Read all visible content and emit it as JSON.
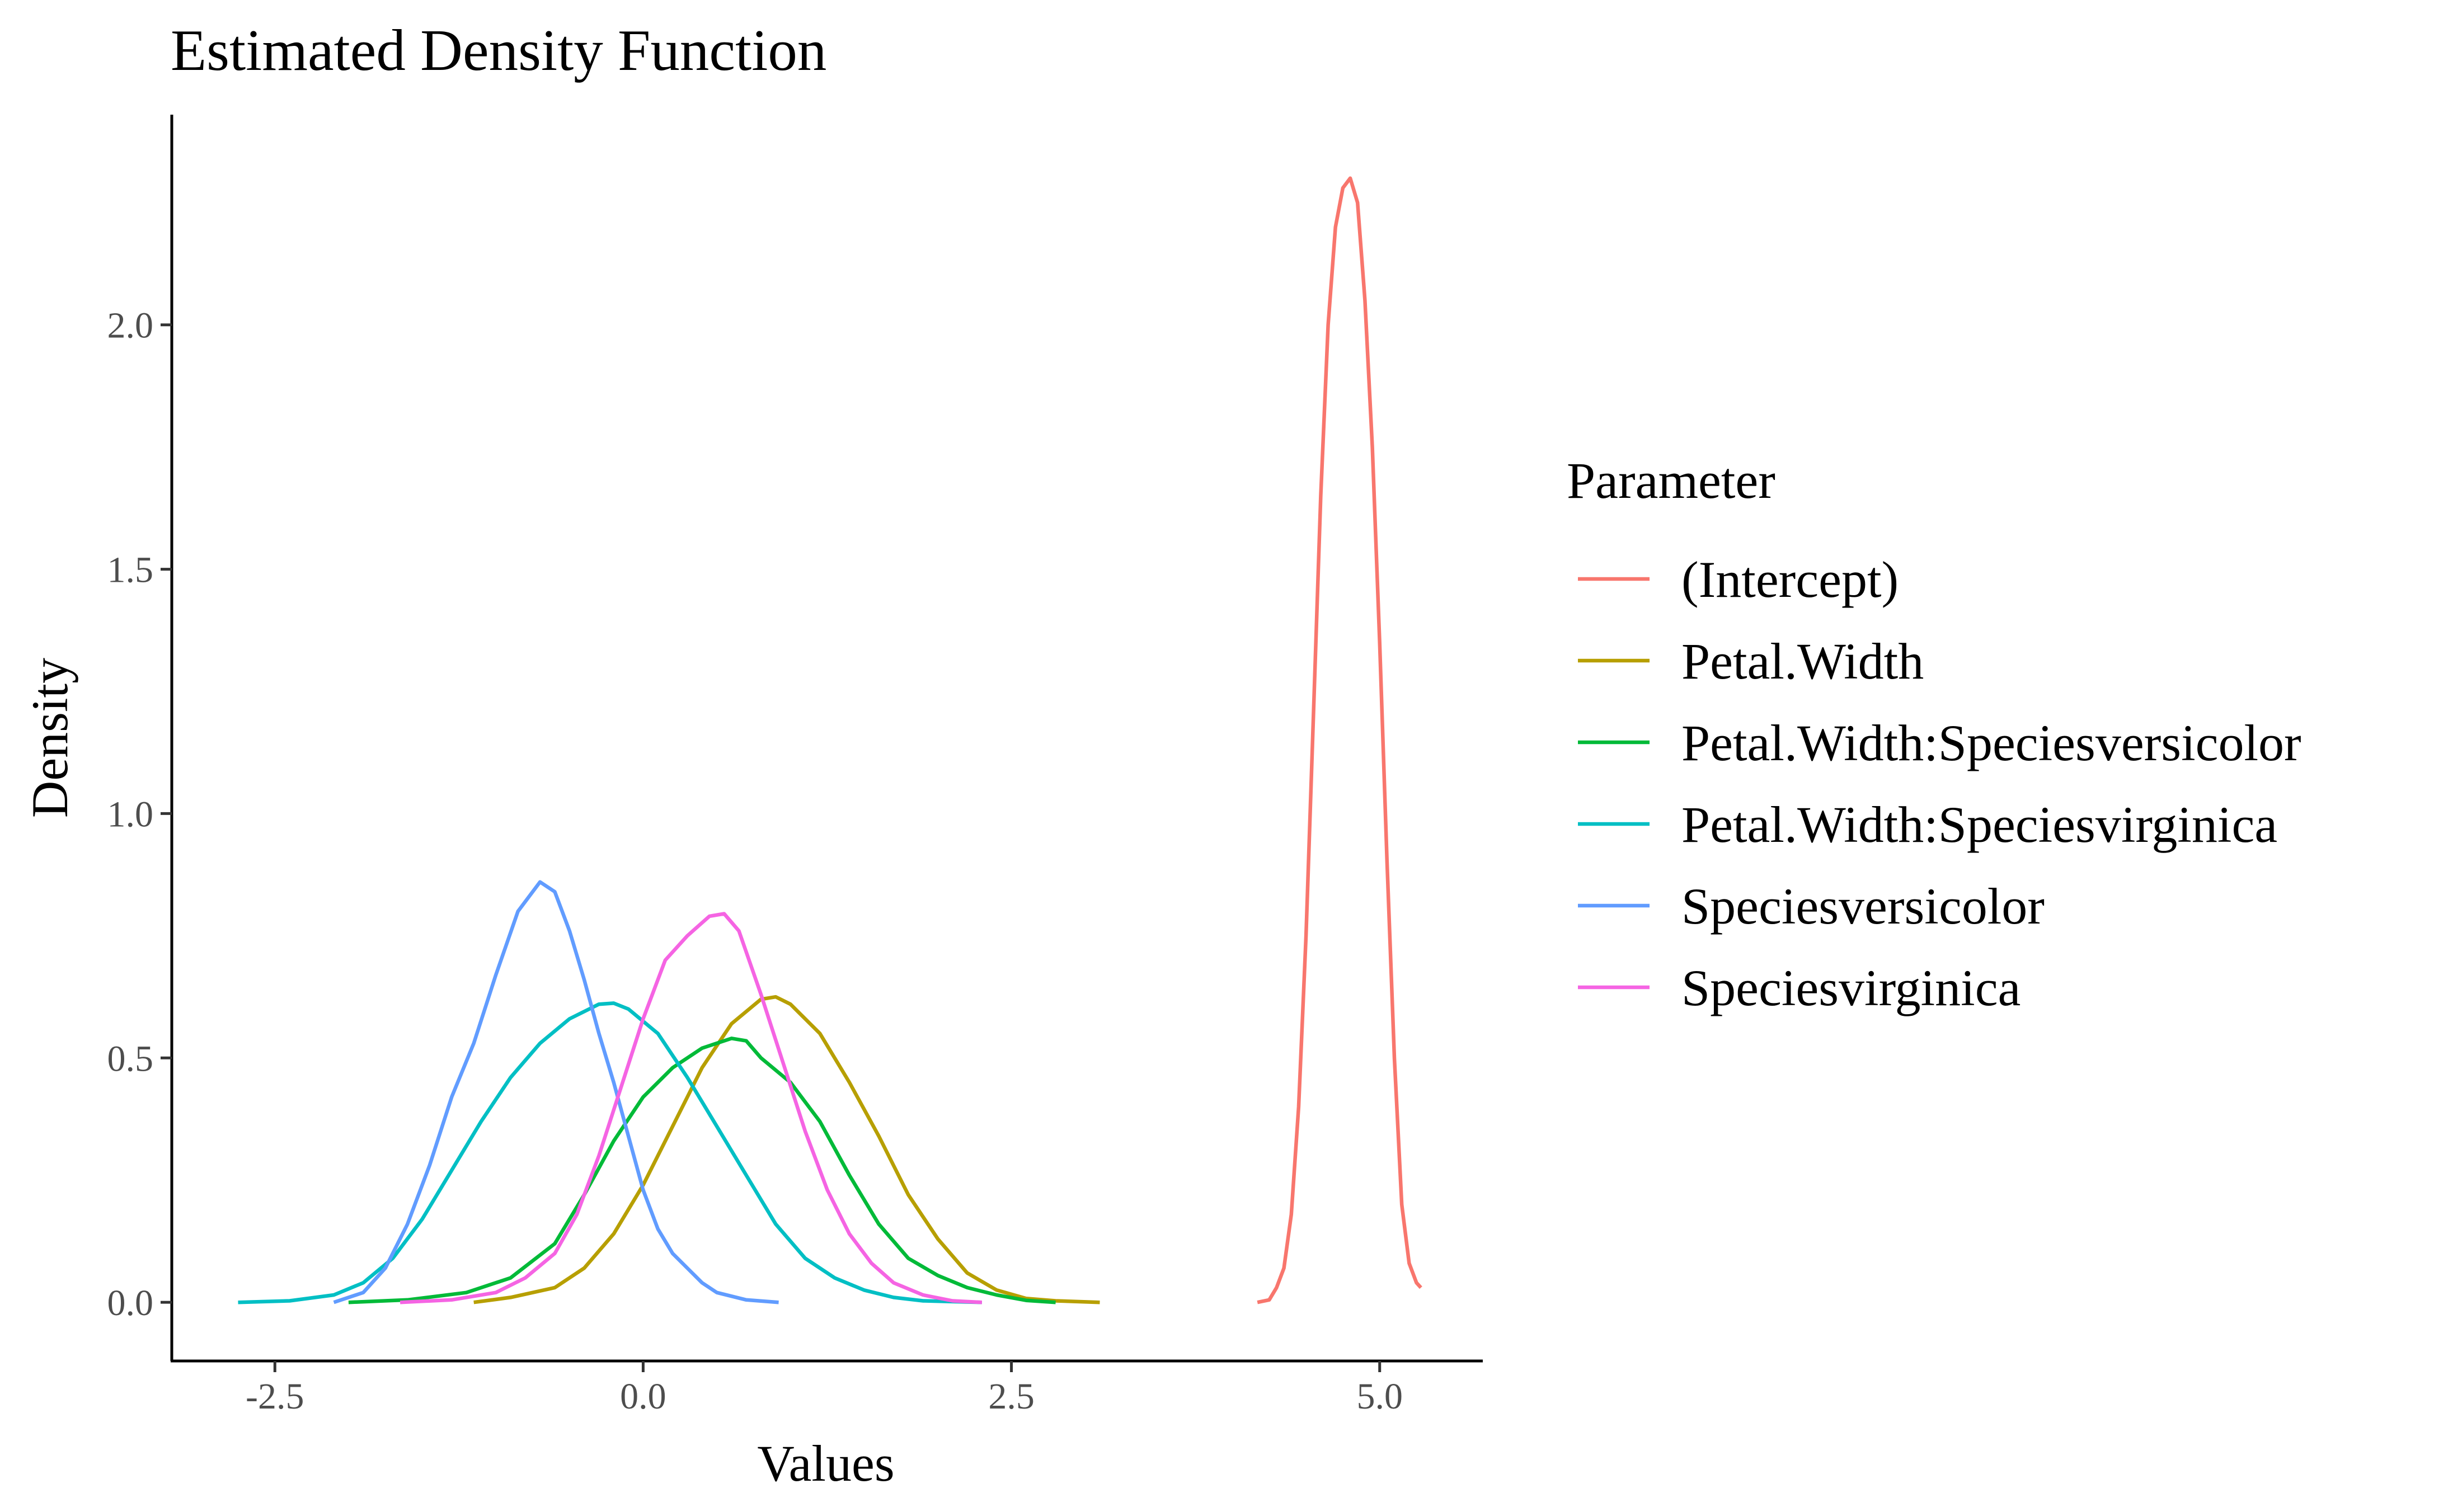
{
  "chart_data": {
    "type": "line",
    "title": "Estimated Density Function",
    "xlabel": "Values",
    "ylabel": "Density",
    "xlim": [
      -3.2,
      5.7
    ],
    "ylim": [
      -0.12,
      2.43
    ],
    "x_ticks": [
      {
        "value": -2.5,
        "label": "-2.5"
      },
      {
        "value": 0.0,
        "label": "0.0"
      },
      {
        "value": 2.5,
        "label": "2.5"
      },
      {
        "value": 5.0,
        "label": "5.0"
      }
    ],
    "y_ticks": [
      {
        "value": 0.0,
        "label": "0.0"
      },
      {
        "value": 0.5,
        "label": "0.5"
      },
      {
        "value": 1.0,
        "label": "1.0"
      },
      {
        "value": 1.5,
        "label": "1.5"
      },
      {
        "value": 2.0,
        "label": "2.0"
      }
    ],
    "grid": false,
    "legend": {
      "title": "Parameter",
      "position": "right"
    },
    "series": [
      {
        "name": "(Intercept)",
        "color": "#F8766D",
        "points": [
          [
            4.17,
            0.0
          ],
          [
            4.25,
            0.005
          ],
          [
            4.3,
            0.03
          ],
          [
            4.35,
            0.07
          ],
          [
            4.4,
            0.18
          ],
          [
            4.45,
            0.4
          ],
          [
            4.5,
            0.75
          ],
          [
            4.55,
            1.2
          ],
          [
            4.6,
            1.65
          ],
          [
            4.65,
            2.0
          ],
          [
            4.7,
            2.2
          ],
          [
            4.75,
            2.28
          ],
          [
            4.8,
            2.3
          ],
          [
            4.85,
            2.25
          ],
          [
            4.9,
            2.05
          ],
          [
            4.95,
            1.75
          ],
          [
            5.0,
            1.35
          ],
          [
            5.05,
            0.9
          ],
          [
            5.1,
            0.5
          ],
          [
            5.15,
            0.2
          ],
          [
            5.2,
            0.08
          ],
          [
            5.25,
            0.04
          ],
          [
            5.28,
            0.03
          ]
        ]
      },
      {
        "name": "Petal.Width",
        "color": "#B79F00",
        "points": [
          [
            -1.15,
            0.0
          ],
          [
            -0.9,
            0.01
          ],
          [
            -0.6,
            0.03
          ],
          [
            -0.4,
            0.07
          ],
          [
            -0.2,
            0.14
          ],
          [
            0.0,
            0.24
          ],
          [
            0.2,
            0.36
          ],
          [
            0.4,
            0.48
          ],
          [
            0.6,
            0.57
          ],
          [
            0.8,
            0.62
          ],
          [
            0.9,
            0.625
          ],
          [
            1.0,
            0.61
          ],
          [
            1.2,
            0.55
          ],
          [
            1.4,
            0.45
          ],
          [
            1.6,
            0.34
          ],
          [
            1.8,
            0.22
          ],
          [
            2.0,
            0.13
          ],
          [
            2.2,
            0.06
          ],
          [
            2.4,
            0.025
          ],
          [
            2.6,
            0.008
          ],
          [
            2.8,
            0.003
          ],
          [
            3.1,
            0.0
          ]
        ]
      },
      {
        "name": "Petal.Width:Speciesversicolor",
        "color": "#00BA38",
        "points": [
          [
            -2.0,
            0.0
          ],
          [
            -1.6,
            0.005
          ],
          [
            -1.2,
            0.02
          ],
          [
            -0.9,
            0.05
          ],
          [
            -0.6,
            0.12
          ],
          [
            -0.4,
            0.22
          ],
          [
            -0.2,
            0.33
          ],
          [
            0.0,
            0.42
          ],
          [
            0.2,
            0.48
          ],
          [
            0.4,
            0.52
          ],
          [
            0.6,
            0.54
          ],
          [
            0.7,
            0.535
          ],
          [
            0.8,
            0.5
          ],
          [
            1.0,
            0.45
          ],
          [
            1.2,
            0.37
          ],
          [
            1.4,
            0.26
          ],
          [
            1.6,
            0.16
          ],
          [
            1.8,
            0.09
          ],
          [
            2.0,
            0.055
          ],
          [
            2.2,
            0.03
          ],
          [
            2.4,
            0.015
          ],
          [
            2.6,
            0.004
          ],
          [
            2.8,
            0.0
          ]
        ]
      },
      {
        "name": "Petal.Width:Speciesvirginica",
        "color": "#00BFC4",
        "points": [
          [
            -2.75,
            0.0
          ],
          [
            -2.4,
            0.003
          ],
          [
            -2.1,
            0.015
          ],
          [
            -1.9,
            0.04
          ],
          [
            -1.7,
            0.09
          ],
          [
            -1.5,
            0.17
          ],
          [
            -1.3,
            0.27
          ],
          [
            -1.1,
            0.37
          ],
          [
            -0.9,
            0.46
          ],
          [
            -0.7,
            0.53
          ],
          [
            -0.5,
            0.58
          ],
          [
            -0.3,
            0.61
          ],
          [
            -0.2,
            0.612
          ],
          [
            -0.1,
            0.6
          ],
          [
            0.1,
            0.55
          ],
          [
            0.3,
            0.46
          ],
          [
            0.5,
            0.36
          ],
          [
            0.7,
            0.26
          ],
          [
            0.9,
            0.16
          ],
          [
            1.1,
            0.09
          ],
          [
            1.3,
            0.05
          ],
          [
            1.5,
            0.025
          ],
          [
            1.7,
            0.01
          ],
          [
            1.9,
            0.003
          ],
          [
            2.3,
            0.0
          ]
        ]
      },
      {
        "name": "Speciesversicolor",
        "color": "#619CFF",
        "points": [
          [
            -2.1,
            0.0
          ],
          [
            -1.9,
            0.02
          ],
          [
            -1.75,
            0.07
          ],
          [
            -1.6,
            0.16
          ],
          [
            -1.45,
            0.28
          ],
          [
            -1.3,
            0.42
          ],
          [
            -1.15,
            0.53
          ],
          [
            -1.0,
            0.67
          ],
          [
            -0.85,
            0.8
          ],
          [
            -0.7,
            0.86
          ],
          [
            -0.6,
            0.84
          ],
          [
            -0.5,
            0.76
          ],
          [
            -0.4,
            0.66
          ],
          [
            -0.3,
            0.55
          ],
          [
            -0.2,
            0.45
          ],
          [
            -0.1,
            0.34
          ],
          [
            0.0,
            0.23
          ],
          [
            0.1,
            0.15
          ],
          [
            0.2,
            0.1
          ],
          [
            0.3,
            0.07
          ],
          [
            0.4,
            0.04
          ],
          [
            0.5,
            0.02
          ],
          [
            0.7,
            0.005
          ],
          [
            0.92,
            0.0
          ]
        ]
      },
      {
        "name": "Speciesvirginica",
        "color": "#F564E3",
        "points": [
          [
            -1.65,
            0.0
          ],
          [
            -1.3,
            0.005
          ],
          [
            -1.0,
            0.02
          ],
          [
            -0.8,
            0.05
          ],
          [
            -0.6,
            0.1
          ],
          [
            -0.45,
            0.18
          ],
          [
            -0.3,
            0.3
          ],
          [
            -0.15,
            0.44
          ],
          [
            0.0,
            0.58
          ],
          [
            0.15,
            0.7
          ],
          [
            0.3,
            0.75
          ],
          [
            0.45,
            0.79
          ],
          [
            0.55,
            0.795
          ],
          [
            0.65,
            0.76
          ],
          [
            0.8,
            0.63
          ],
          [
            0.95,
            0.49
          ],
          [
            1.1,
            0.35
          ],
          [
            1.25,
            0.23
          ],
          [
            1.4,
            0.14
          ],
          [
            1.55,
            0.08
          ],
          [
            1.7,
            0.04
          ],
          [
            1.9,
            0.015
          ],
          [
            2.1,
            0.003
          ],
          [
            2.3,
            0.0
          ]
        ]
      }
    ]
  }
}
